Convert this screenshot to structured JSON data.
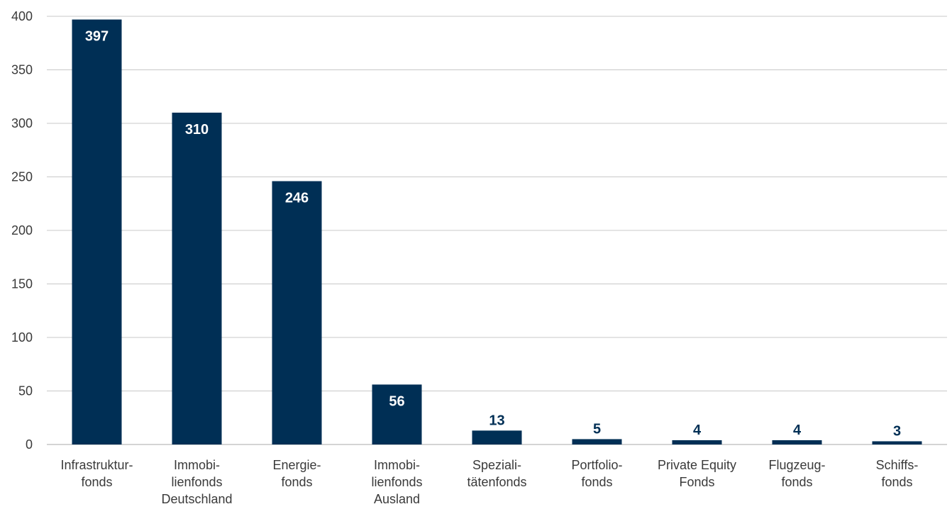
{
  "chart_data": {
    "type": "bar",
    "categories": [
      [
        "Infrastruktur-",
        "fonds"
      ],
      [
        "Immobi-",
        "lienfonds",
        "Deutschland"
      ],
      [
        "Energie-",
        "fonds"
      ],
      [
        "Immobi-",
        "lienfonds",
        "Ausland"
      ],
      [
        "Speziali-",
        "tätenfonds"
      ],
      [
        "Portfolio-",
        "fonds"
      ],
      [
        "Private Equity",
        "Fonds"
      ],
      [
        "Flugzeug-",
        "fonds"
      ],
      [
        "Schiffs-",
        "fonds"
      ]
    ],
    "values": [
      397,
      310,
      246,
      56,
      13,
      5,
      4,
      4,
      3
    ],
    "ylim": [
      0,
      400
    ],
    "yticks": [
      0,
      50,
      100,
      150,
      200,
      250,
      300,
      350,
      400
    ],
    "grid": true,
    "colors": {
      "bar": "#002f55",
      "label_inside": "#ffffff",
      "label_outside": "#002f55",
      "grid": "#c8c8c8"
    }
  }
}
